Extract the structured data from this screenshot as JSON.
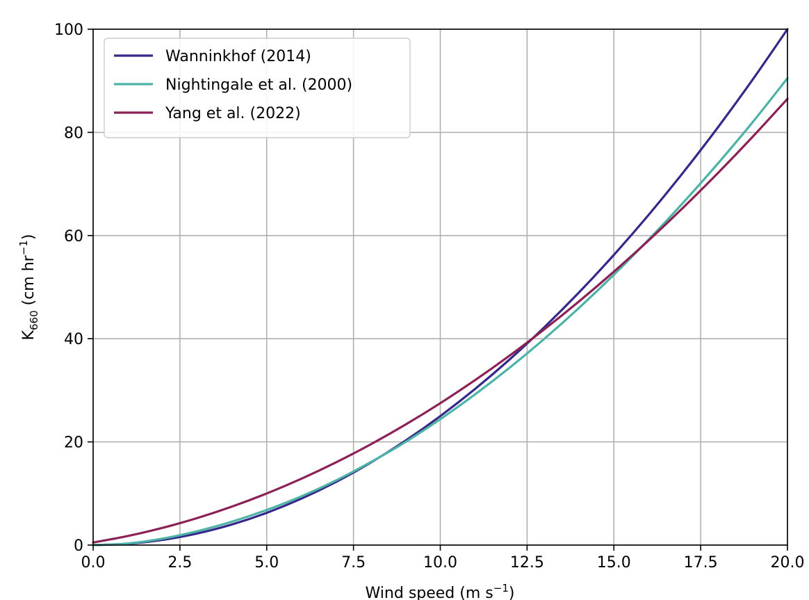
{
  "chart_data": {
    "type": "line",
    "xlabel_main": "Wind speed (m s",
    "xlabel_sup": "−1",
    "xlabel_close": ")",
    "ylabel_main": "K",
    "ylabel_sub": "660",
    "ylabel_rest": " (cm hr",
    "ylabel_sup": "−1",
    "ylabel_close": ")",
    "xlim": [
      0,
      20
    ],
    "ylim": [
      0,
      100
    ],
    "xticks": [
      0,
      2.5,
      5,
      7.5,
      10,
      12.5,
      15,
      17.5,
      20
    ],
    "xtick_labels": [
      "0.0",
      "2.5",
      "5.0",
      "7.5",
      "10.0",
      "12.5",
      "15.0",
      "17.5",
      "20.0"
    ],
    "yticks": [
      0,
      20,
      40,
      60,
      80,
      100
    ],
    "ytick_labels": [
      "0",
      "20",
      "40",
      "60",
      "80",
      "100"
    ],
    "grid": true,
    "legend_position": "top-left",
    "x": [
      0,
      1,
      2,
      3,
      4,
      5,
      6,
      7,
      8,
      9,
      10,
      11,
      12,
      13,
      14,
      15,
      16,
      17,
      18,
      19,
      20
    ],
    "series": [
      {
        "name": "Wanninkhof (2014)",
        "color": "#35288a",
        "values": [
          0,
          0.25,
          1.0,
          2.25,
          4.0,
          6.25,
          9.0,
          12.25,
          16.0,
          20.25,
          25.0,
          30.25,
          36.0,
          42.25,
          49.0,
          56.25,
          64.0,
          72.25,
          81.0,
          90.25,
          100.0
        ]
      },
      {
        "name": "Nightingale et al. (2000)",
        "color": "#4db3a6",
        "values": [
          0,
          0.31,
          1.25,
          2.69,
          4.55,
          6.8,
          9.45,
          12.55,
          16.1,
          20.0,
          24.4,
          29.2,
          34.4,
          40.0,
          46.0,
          52.4,
          59.2,
          66.4,
          74.0,
          82.0,
          90.5
        ]
      },
      {
        "name": "Yang et al. (2022)",
        "color": "#8b2155",
        "values": [
          0.5,
          1.76,
          3.34,
          5.24,
          7.46,
          10.0,
          12.86,
          16.04,
          19.54,
          23.36,
          27.5,
          31.96,
          36.74,
          41.84,
          47.26,
          53.0,
          59.06,
          65.44,
          72.14,
          79.16,
          86.5
        ]
      }
    ]
  }
}
